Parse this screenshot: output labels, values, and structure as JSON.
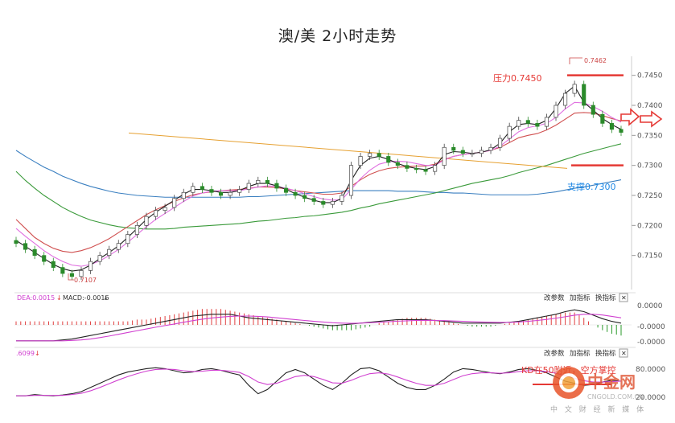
{
  "title": "澳/美 2小时走势",
  "chart_data": [
    {
      "type": "candlestick",
      "title": "澳/美 2小时走势",
      "ylim": [
        0.71,
        0.7475
      ],
      "y_ticks": [
        "0.7450",
        "0.7400",
        "0.7350",
        "0.7300",
        "0.7250",
        "0.7200",
        "0.7150"
      ],
      "grid": false,
      "annotations": {
        "resistance": {
          "label": "压力0.7450",
          "value": 0.745
        },
        "support": {
          "label": "支撑0.7300",
          "value": 0.73
        },
        "high": {
          "label": "0.7462",
          "value": 0.7462
        },
        "low": {
          "label": "0.7107",
          "value": 0.7107
        }
      },
      "close_series": [
        0.717,
        0.716,
        0.715,
        0.714,
        0.713,
        0.712,
        0.7115,
        0.7125,
        0.714,
        0.715,
        0.716,
        0.717,
        0.7185,
        0.72,
        0.7215,
        0.7225,
        0.723,
        0.7245,
        0.7255,
        0.7265,
        0.726,
        0.7255,
        0.725,
        0.7255,
        0.726,
        0.727,
        0.7275,
        0.727,
        0.7262,
        0.7255,
        0.725,
        0.7245,
        0.724,
        0.7235,
        0.724,
        0.725,
        0.73,
        0.7315,
        0.732,
        0.7315,
        0.7305,
        0.73,
        0.7295,
        0.7293,
        0.729,
        0.73,
        0.733,
        0.7325,
        0.732,
        0.732,
        0.7325,
        0.733,
        0.7345,
        0.7365,
        0.7375,
        0.737,
        0.7365,
        0.738,
        0.74,
        0.742,
        0.7435,
        0.74,
        0.7385,
        0.737,
        0.736,
        0.7355
      ],
      "series": [
        {
          "name": "",
          "color": "#d05050",
          "values": [
            0.721,
            0.7195,
            0.718,
            0.717,
            0.7162,
            0.7157,
            0.7155,
            0.7158,
            0.7163,
            0.717,
            0.7178,
            0.7188,
            0.7198,
            0.7208,
            0.7218,
            0.7226,
            0.7233,
            0.724,
            0.7246,
            0.7251,
            0.7254,
            0.7256,
            0.7258,
            0.7259,
            0.726,
            0.7262,
            0.7264,
            0.7264,
            0.7263,
            0.7261,
            0.7258,
            0.7256,
            0.7254,
            0.7252,
            0.7252,
            0.7254,
            0.7265,
            0.7276,
            0.7285,
            0.7291,
            0.7295,
            0.7297,
            0.7298,
            0.7299,
            0.7299,
            0.7302,
            0.731,
            0.7315,
            0.7318,
            0.732,
            0.7322,
            0.7325,
            0.733,
            0.7338,
            0.7346,
            0.735,
            0.7353,
            0.7359,
            0.7367,
            0.7377,
            0.7387,
            0.7388,
            0.7387,
            0.7383,
            0.7378,
            0.7374
          ]
        },
        {
          "name": "",
          "color": "#e070e0",
          "values": [
            0.7195,
            0.7182,
            0.717,
            0.7158,
            0.7148,
            0.714,
            0.7134,
            0.7132,
            0.7135,
            0.7141,
            0.715,
            0.716,
            0.7172,
            0.7185,
            0.7198,
            0.721,
            0.722,
            0.723,
            0.724,
            0.7249,
            0.7254,
            0.7257,
            0.7258,
            0.7258,
            0.7258,
            0.7261,
            0.7264,
            0.7266,
            0.7265,
            0.7262,
            0.7258,
            0.7253,
            0.7248,
            0.7244,
            0.7242,
            0.7243,
            0.726,
            0.7278,
            0.7292,
            0.7302,
            0.7306,
            0.7307,
            0.7306,
            0.7303,
            0.73,
            0.73,
            0.7309,
            0.7315,
            0.7318,
            0.732,
            0.7322,
            0.7325,
            0.7332,
            0.7344,
            0.7356,
            0.7363,
            0.7366,
            0.737,
            0.738,
            0.7394,
            0.7405,
            0.7404,
            0.7398,
            0.739,
            0.738,
            0.7372
          ]
        },
        {
          "name": "",
          "color": "#222222",
          "values": [
            0.7175,
            0.7165,
            0.7155,
            0.7145,
            0.7135,
            0.7128,
            0.7124,
            0.7126,
            0.7134,
            0.7145,
            0.7155,
            0.7166,
            0.718,
            0.7195,
            0.721,
            0.7222,
            0.7232,
            0.7242,
            0.7252,
            0.726,
            0.726,
            0.7258,
            0.7255,
            0.7255,
            0.7258,
            0.7265,
            0.727,
            0.727,
            0.7266,
            0.726,
            0.7253,
            0.7247,
            0.7242,
            0.7238,
            0.7238,
            0.7245,
            0.7275,
            0.73,
            0.7312,
            0.7315,
            0.731,
            0.7303,
            0.7298,
            0.7295,
            0.7293,
            0.7298,
            0.7318,
            0.7323,
            0.7322,
            0.732,
            0.7322,
            0.7326,
            0.7337,
            0.7356,
            0.7368,
            0.737,
            0.7368,
            0.7375,
            0.7395,
            0.742,
            0.7432,
            0.7405,
            0.7392,
            0.7378,
            0.7368,
            0.736
          ]
        }
      ],
      "long_ma": [
        {
          "name": "",
          "color": "#3a7fc0",
          "values": [
            0.7325,
            0.7315,
            0.7306,
            0.7297,
            0.729,
            0.7282,
            0.7276,
            0.727,
            0.7265,
            0.7261,
            0.7257,
            0.7254,
            0.7252,
            0.725,
            0.7249,
            0.7248,
            0.7247,
            0.7247,
            0.7247,
            0.7247,
            0.7247,
            0.7247,
            0.7247,
            0.7247,
            0.7247,
            0.7248,
            0.7248,
            0.7249,
            0.725,
            0.7251,
            0.7252,
            0.7253,
            0.7254,
            0.7255,
            0.7256,
            0.7257,
            0.7258,
            0.7258,
            0.7258,
            0.7258,
            0.7258,
            0.7257,
            0.7257,
            0.7257,
            0.7256,
            0.7255,
            0.7255,
            0.7254,
            0.7254,
            0.7253,
            0.7252,
            0.7251,
            0.7251,
            0.7251,
            0.7251,
            0.7251,
            0.7252,
            0.7254,
            0.7256,
            0.7259,
            0.7262,
            0.7264,
            0.7267,
            0.727,
            0.7273,
            0.7276
          ]
        },
        {
          "name": "",
          "color": "#3a9a3a",
          "values": [
            0.729,
            0.7275,
            0.7262,
            0.725,
            0.724,
            0.723,
            0.7222,
            0.7215,
            0.7209,
            0.7205,
            0.7201,
            0.7198,
            0.7196,
            0.7195,
            0.7194,
            0.7194,
            0.7194,
            0.7195,
            0.7197,
            0.7198,
            0.7199,
            0.72,
            0.7201,
            0.7202,
            0.7203,
            0.7205,
            0.7207,
            0.7208,
            0.721,
            0.7212,
            0.7213,
            0.7215,
            0.7216,
            0.7218,
            0.722,
            0.7222,
            0.7225,
            0.7229,
            0.7232,
            0.7236,
            0.7239,
            0.7242,
            0.7245,
            0.7248,
            0.7251,
            0.7254,
            0.7258,
            0.7262,
            0.7266,
            0.727,
            0.7273,
            0.7276,
            0.7279,
            0.7283,
            0.7288,
            0.7292,
            0.7296,
            0.73,
            0.7305,
            0.731,
            0.7315,
            0.732,
            0.7324,
            0.7328,
            0.7332,
            0.7336
          ]
        }
      ],
      "sloped_line": {
        "color": "#e6a030",
        "values": [
          0.7354,
          0.7295
        ]
      }
    },
    {
      "type": "line",
      "title": "MACD",
      "legend": [
        "DEA:0.0015",
        "MACD:-0.0016"
      ],
      "buttons": [
        "改参数",
        "加指标",
        "换指标",
        "✕"
      ],
      "y_ticks": [
        "0.0000",
        "-0.0000",
        "-0.0000"
      ],
      "hist": [
        0.2,
        0.2,
        0.2,
        0.2,
        0.2,
        0.2,
        0.2,
        0.2,
        0.2,
        0.2,
        0.2,
        0.2,
        0.2,
        0.3,
        0.3,
        0.4,
        0.5,
        0.6,
        0.7,
        0.8,
        0.9,
        0.9,
        0.9,
        0.8,
        0.7,
        0.6,
        0.5,
        0.4,
        0.3,
        0.2,
        0.1,
        0.0,
        -0.1,
        -0.2,
        -0.3,
        -0.3,
        -0.3,
        -0.2,
        -0.1,
        0.1,
        0.2,
        0.3,
        0.4,
        0.4,
        0.4,
        0.3,
        0.2,
        0.1,
        0.0,
        -0.1,
        -0.1,
        -0.1,
        0.0,
        0.1,
        0.2,
        0.3,
        0.4,
        0.5,
        0.6,
        0.7,
        0.7,
        0.4,
        0.0,
        -0.3,
        -0.5,
        -0.6
      ],
      "dif": [
        -0.9,
        -0.9,
        -0.9,
        -0.9,
        -0.9,
        -0.85,
        -0.8,
        -0.7,
        -0.6,
        -0.5,
        -0.4,
        -0.3,
        -0.2,
        -0.1,
        0.0,
        0.1,
        0.2,
        0.3,
        0.4,
        0.5,
        0.55,
        0.6,
        0.6,
        0.6,
        0.5,
        0.4,
        0.35,
        0.3,
        0.25,
        0.2,
        0.15,
        0.1,
        0.05,
        0.0,
        -0.05,
        0.0,
        0.05,
        0.1,
        0.15,
        0.2,
        0.25,
        0.3,
        0.3,
        0.3,
        0.3,
        0.25,
        0.2,
        0.15,
        0.1,
        0.1,
        0.1,
        0.1,
        0.1,
        0.15,
        0.2,
        0.3,
        0.4,
        0.5,
        0.6,
        0.75,
        0.85,
        0.75,
        0.55,
        0.35,
        0.2,
        0.1
      ],
      "dea": [
        -0.9,
        -0.9,
        -0.9,
        -0.9,
        -0.9,
        -0.9,
        -0.88,
        -0.85,
        -0.8,
        -0.72,
        -0.63,
        -0.53,
        -0.43,
        -0.33,
        -0.23,
        -0.13,
        -0.04,
        0.05,
        0.15,
        0.24,
        0.32,
        0.39,
        0.44,
        0.48,
        0.5,
        0.5,
        0.48,
        0.45,
        0.4,
        0.35,
        0.3,
        0.25,
        0.2,
        0.16,
        0.12,
        0.1,
        0.09,
        0.1,
        0.12,
        0.15,
        0.18,
        0.21,
        0.23,
        0.25,
        0.26,
        0.25,
        0.24,
        0.22,
        0.2,
        0.18,
        0.16,
        0.15,
        0.14,
        0.14,
        0.16,
        0.2,
        0.25,
        0.31,
        0.38,
        0.46,
        0.55,
        0.6,
        0.6,
        0.56,
        0.48,
        0.4
      ]
    },
    {
      "type": "line",
      "title": "KD",
      "legend": [
        ".6099"
      ],
      "buttons": [
        "改参数",
        "加指标",
        "换指标",
        "✕"
      ],
      "y_ticks": [
        "80.0000",
        "20.0000"
      ],
      "annotation": "KD在50附近，空方掌控",
      "k": [
        15,
        15,
        18,
        16,
        15,
        17,
        20,
        25,
        35,
        45,
        55,
        65,
        72,
        76,
        80,
        82,
        80,
        75,
        70,
        72,
        78,
        80,
        76,
        70,
        65,
        40,
        20,
        30,
        50,
        70,
        78,
        70,
        55,
        40,
        30,
        45,
        65,
        80,
        82,
        75,
        60,
        45,
        35,
        30,
        30,
        40,
        55,
        72,
        80,
        78,
        74,
        70,
        68,
        72,
        78,
        80,
        76,
        70,
        60,
        50,
        45,
        40,
        42,
        48,
        52,
        50
      ],
      "d": [
        15,
        15,
        16,
        16,
        16,
        16,
        18,
        21,
        27,
        35,
        44,
        53,
        61,
        68,
        74,
        78,
        79,
        78,
        75,
        73,
        74,
        76,
        76,
        74,
        71,
        61,
        48,
        42,
        45,
        53,
        61,
        64,
        61,
        54,
        46,
        45,
        52,
        61,
        68,
        70,
        67,
        60,
        52,
        45,
        40,
        40,
        45,
        54,
        63,
        68,
        70,
        70,
        69,
        70,
        73,
        75,
        75,
        73,
        69,
        63,
        57,
        51,
        48,
        48,
        49,
        50
      ]
    },
    {
      "type": "watermark",
      "brand": "中金网",
      "url": "CNGOLD.COM.CN",
      "tagline": "中 文 财 经 新 媒 体"
    }
  ]
}
